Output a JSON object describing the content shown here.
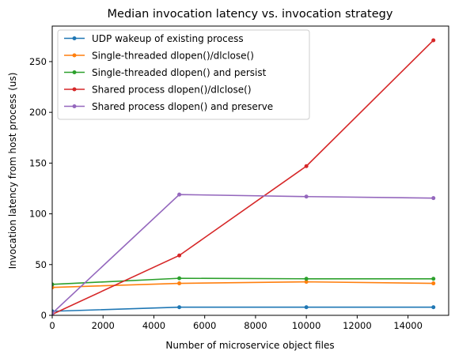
{
  "chart_data": {
    "type": "line",
    "title": "Median invocation latency vs. invocation strategy",
    "xlabel": "Number of microservice object files",
    "ylabel": "Invocation latency from host process (us)",
    "xlim": [
      0,
      15600
    ],
    "ylim": [
      0,
      285
    ],
    "x_ticks": [
      0,
      2000,
      4000,
      6000,
      8000,
      10000,
      12000,
      14000
    ],
    "y_ticks": [
      0,
      50,
      100,
      150,
      200,
      250
    ],
    "legend_position": "top-left",
    "grid": false,
    "x": [
      0,
      5000,
      10000,
      15000
    ],
    "series": [
      {
        "name": "UDP wakeup of existing process",
        "color": "#1f77b4",
        "values": [
          4,
          8,
          8,
          8
        ]
      },
      {
        "name": "Single-threaded dlopen()/dlclose()",
        "color": "#ff7f0e",
        "values": [
          27.5,
          31.5,
          33,
          31.5
        ]
      },
      {
        "name": "Single-threaded dlopen() and persist",
        "color": "#2ca02c",
        "values": [
          30.5,
          36.5,
          36,
          36
        ]
      },
      {
        "name": "Shared process dlopen()/dlclose()",
        "color": "#d62728",
        "values": [
          1,
          59,
          147,
          271
        ]
      },
      {
        "name": "Shared process dlopen() and preserve",
        "color": "#9467bd",
        "values": [
          2,
          119,
          117,
          115.5
        ]
      }
    ]
  }
}
